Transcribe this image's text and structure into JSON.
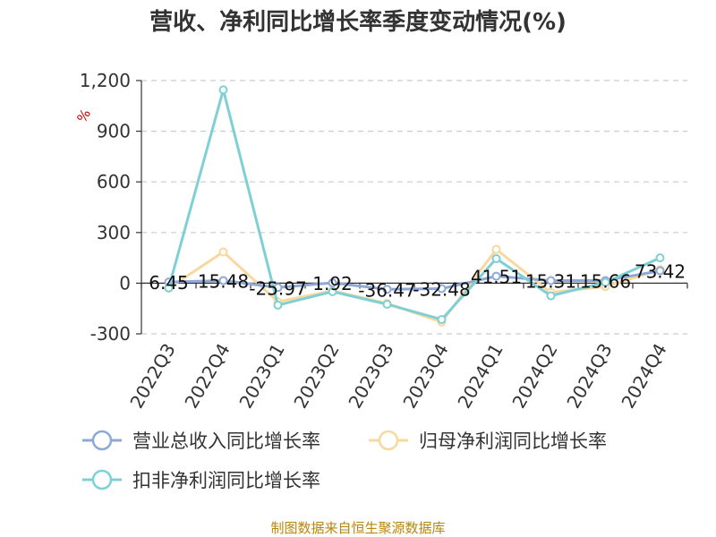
{
  "title": "营收、净利同比增长率季度变动情况(%)",
  "footer": "制图数据来自恒生聚源数据库",
  "colors": {
    "revenue": "#8ea9d8",
    "net_profit": "#f7d9a0",
    "deducted_profit": "#7fd0d4",
    "grid": "#cccccc",
    "axis": "#333333",
    "unit": "#cc0000",
    "footer": "#b8860b"
  },
  "chart_data": {
    "type": "line",
    "title": "营收、净利同比增长率季度变动情况(%)",
    "ylabel": "%",
    "ylim": [
      -300,
      1200
    ],
    "yticks": [
      -300,
      0,
      300,
      600,
      900,
      1200
    ],
    "ytick_labels": [
      "-300",
      "0",
      "300",
      "600",
      "900",
      "1,200"
    ],
    "grid": true,
    "legend_position": "bottom",
    "categories": [
      "2022Q3",
      "2022Q4",
      "2023Q1",
      "2023Q2",
      "2023Q3",
      "2023Q4",
      "2024Q1",
      "2024Q2",
      "2024Q3",
      "2024Q4"
    ],
    "series": [
      {
        "name": "营业总收入同比增长率",
        "color_key": "revenue",
        "values": [
          6.45,
          15.48,
          -25.97,
          1.92,
          -36.47,
          -32.48,
          41.51,
          15.31,
          15.66,
          73.42
        ],
        "labels": [
          "6.45",
          "15.48",
          "-25.97",
          "1.92",
          "-36.47",
          "-32.48",
          "41.51",
          "15.31",
          "15.66",
          "73.42"
        ]
      },
      {
        "name": "归母净利润同比增长率",
        "color_key": "net_profit",
        "values": [
          -30,
          185,
          -110,
          -45,
          -120,
          -230,
          200,
          -55,
          -20,
          80
        ]
      },
      {
        "name": "扣非净利润同比增长率",
        "color_key": "deducted_profit",
        "values": [
          -28,
          1145,
          -130,
          -50,
          -125,
          -215,
          145,
          -75,
          5,
          150
        ]
      }
    ]
  }
}
